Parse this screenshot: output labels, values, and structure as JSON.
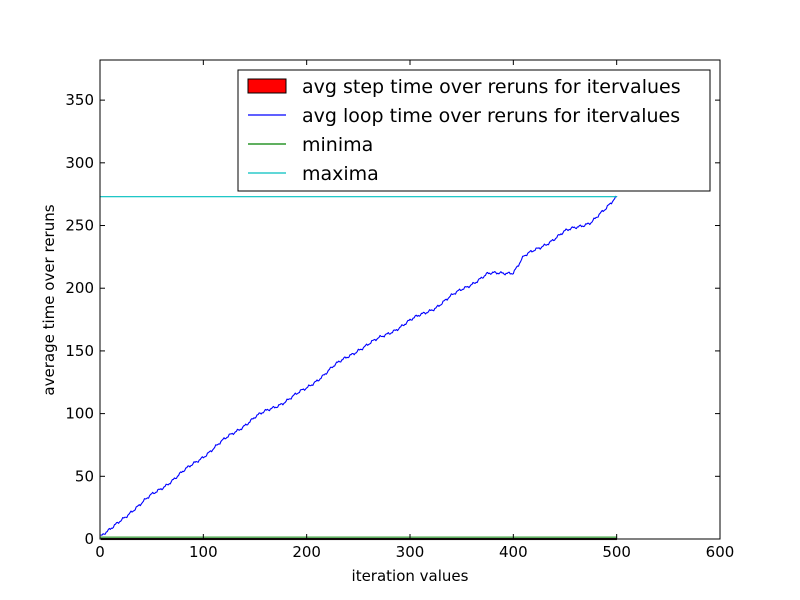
{
  "chart_data": {
    "type": "line",
    "title": "",
    "xlabel": "iteration values",
    "ylabel": "average time over reruns",
    "xlim": [
      0,
      600
    ],
    "ylim": [
      0,
      382
    ],
    "x_ticks": [
      0,
      100,
      200,
      300,
      400,
      500,
      600
    ],
    "y_ticks": [
      0,
      50,
      100,
      150,
      200,
      250,
      300,
      350
    ],
    "grid": false,
    "legend_placement": "top-right",
    "legend": [
      {
        "label": "avg step time over reruns for itervalues",
        "type": "patch",
        "color": "#ff0000"
      },
      {
        "label": "avg loop time over reruns for itervalues",
        "type": "line",
        "color": "#0000ff"
      },
      {
        "label": "minima",
        "type": "line",
        "color": "#008000"
      },
      {
        "label": "maxima",
        "type": "line",
        "color": "#00bfbf"
      }
    ],
    "series": [
      {
        "name": "avg step time over reruns for itervalues",
        "kind": "bar",
        "color": "#ff0000",
        "x": [
          1,
          500
        ],
        "y": [
          0.55,
          0.55
        ]
      },
      {
        "name": "avg loop time over reruns for itervalues",
        "kind": "line",
        "color": "#0000ff",
        "x": [
          1,
          10,
          20,
          30,
          40,
          50,
          75,
          100,
          125,
          150,
          175,
          200,
          225,
          250,
          275,
          300,
          325,
          350,
          375,
          400,
          410,
          425,
          450,
          475,
          490,
          500
        ],
        "y": [
          2,
          7,
          15,
          22,
          28,
          35,
          50,
          66,
          82,
          97,
          108,
          120,
          137,
          151,
          162,
          174,
          185,
          199,
          211,
          213,
          225,
          232,
          245,
          253,
          263,
          273
        ]
      },
      {
        "name": "minima",
        "kind": "line",
        "color": "#008000",
        "x": [
          0,
          500
        ],
        "y": [
          1.5,
          1.5
        ]
      },
      {
        "name": "maxima",
        "kind": "line",
        "color": "#00bfbf",
        "x": [
          0,
          500
        ],
        "y": [
          273,
          273
        ]
      }
    ]
  }
}
